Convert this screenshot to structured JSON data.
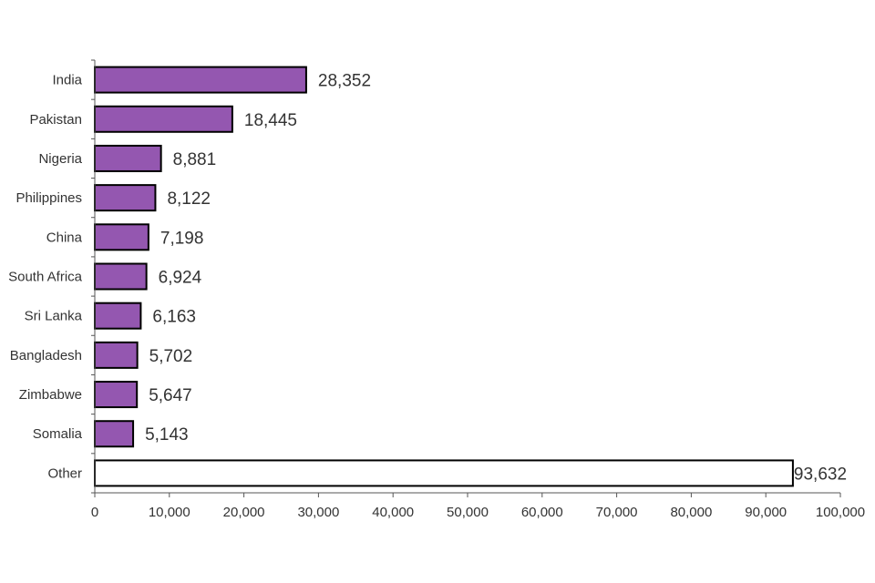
{
  "chart_data": {
    "type": "bar",
    "orientation": "horizontal",
    "categories": [
      "India",
      "Pakistan",
      "Nigeria",
      "Philippines",
      "China",
      "South Africa",
      "Sri Lanka",
      "Bangladesh",
      "Zimbabwe",
      "Somalia",
      "Other"
    ],
    "values": [
      28352,
      18445,
      8881,
      8122,
      7198,
      6924,
      6163,
      5702,
      5647,
      5143,
      93632
    ],
    "value_labels": [
      "28,352",
      "18,445",
      "8,881",
      "8,122",
      "7,198",
      "6,924",
      "6,163",
      "5,702",
      "5,647",
      "5,143",
      "93,632"
    ],
    "xlim": [
      0,
      100000
    ],
    "xticks": [
      0,
      10000,
      20000,
      30000,
      40000,
      50000,
      60000,
      70000,
      80000,
      90000,
      100000
    ],
    "xtick_labels": [
      "0",
      "10,000",
      "20,000",
      "30,000",
      "40,000",
      "50,000",
      "60,000",
      "70,000",
      "80,000",
      "90,000",
      "100,000"
    ],
    "grid": false,
    "colors": {
      "bar": "#9457b0",
      "other_bar": "#ffffff"
    }
  }
}
